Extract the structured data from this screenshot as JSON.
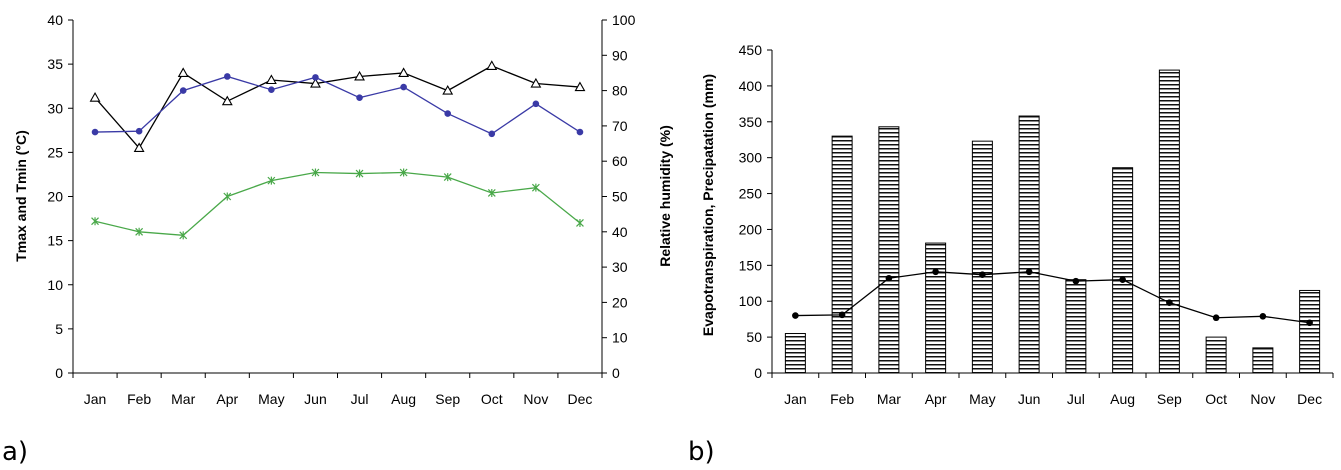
{
  "chart_data": [
    {
      "panel_label": "a)",
      "type": "line",
      "categories": [
        "Jan",
        "Feb",
        "Mar",
        "Apr",
        "May",
        "Jun",
        "Jul",
        "Aug",
        "Sep",
        "Oct",
        "Nov",
        "Dec"
      ],
      "ylabel": "Tmax and Tmin (°C)",
      "y2label": "Relative humidity (%)",
      "ylim": [
        0,
        40
      ],
      "yticks": [
        0,
        5,
        10,
        15,
        20,
        25,
        30,
        35,
        40
      ],
      "y2lim": [
        0,
        100
      ],
      "y2ticks": [
        0,
        10,
        20,
        30,
        40,
        50,
        60,
        70,
        80,
        90,
        100
      ],
      "grid": false,
      "series": [
        {
          "axis": "left",
          "marker": "triangle",
          "color": "#000000",
          "values": [
            31.2,
            25.5,
            34.0,
            30.8,
            33.2,
            32.8,
            33.6,
            34.0,
            32.0,
            34.8,
            32.8,
            32.4
          ]
        },
        {
          "axis": "left",
          "marker": "dot",
          "color": "#3a3aa6",
          "values": [
            27.3,
            27.4,
            32.0,
            33.6,
            32.1,
            33.5,
            31.2,
            32.4,
            29.4,
            27.1,
            30.5,
            27.3
          ]
        },
        {
          "axis": "right",
          "marker": "x",
          "color": "#49a849",
          "values": [
            43,
            40,
            39,
            50,
            54.5,
            56.8,
            56.5,
            56.8,
            55.5,
            51,
            52.5,
            42.5
          ]
        }
      ]
    },
    {
      "panel_label": "b)",
      "type": "bar",
      "categories": [
        "Jan",
        "Feb",
        "Mar",
        "Apr",
        "May",
        "Jun",
        "Jul",
        "Aug",
        "Sep",
        "Oct",
        "Nov",
        "Dec"
      ],
      "ylabel": "Evapotranspiration, Precipatation (mm)",
      "ylim": [
        0,
        450
      ],
      "yticks": [
        0,
        50,
        100,
        150,
        200,
        250,
        300,
        350,
        400,
        450
      ],
      "grid": false,
      "series": [
        {
          "type": "bar",
          "pattern": "horizontal-stripes",
          "values": [
            55,
            330,
            343,
            181,
            323,
            358,
            130,
            286,
            422,
            50,
            35,
            115
          ]
        },
        {
          "type": "line",
          "marker": "dot",
          "color": "#000000",
          "values": [
            80,
            81,
            132,
            141,
            137,
            141,
            128,
            130,
            98,
            77,
            79,
            70
          ]
        }
      ]
    }
  ]
}
